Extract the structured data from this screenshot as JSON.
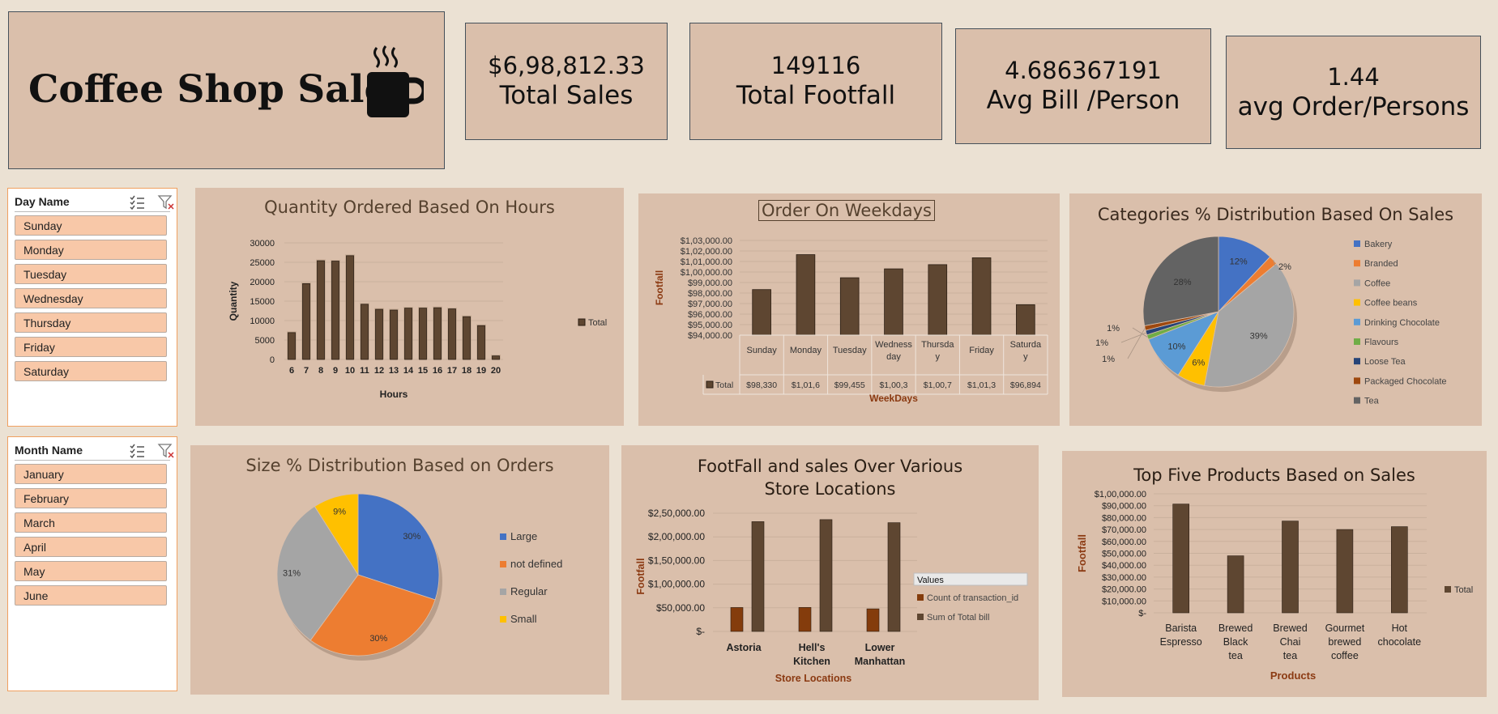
{
  "header": {
    "title": "Coffee Shop Sales",
    "icon": "coffee-mug-icon"
  },
  "kpis": [
    {
      "value": "$6,98,812.33",
      "label": "Total Sales"
    },
    {
      "value": "149116",
      "label": "Total Footfall"
    },
    {
      "value": "4.686367191",
      "label": "Avg Bill  /Person"
    },
    {
      "value": "1.44",
      "label": "avg Order/Persons"
    }
  ],
  "slicers": {
    "day": {
      "title": "Day Name",
      "items": [
        "Sunday",
        "Monday",
        "Tuesday",
        "Wednesday",
        "Thursday",
        "Friday",
        "Saturday"
      ]
    },
    "month": {
      "title": "Month Name",
      "items": [
        "January",
        "February",
        "March",
        "April",
        "May",
        "June"
      ]
    }
  },
  "colors": {
    "background": "#ebe1d3",
    "panel": "#dabfab",
    "bar": "#5e4631",
    "title_text": "#55412e",
    "axis_title": "#8b3a12",
    "slicer_item": "#f8c8a8"
  },
  "chart_data": [
    {
      "id": "hours",
      "type": "bar",
      "title": "Quantity Ordered Based On Hours",
      "xlabel": "Hours",
      "ylabel": "Quantity",
      "categories": [
        "6",
        "7",
        "8",
        "9",
        "10",
        "11",
        "12",
        "13",
        "14",
        "15",
        "16",
        "17",
        "18",
        "19",
        "20"
      ],
      "series": [
        {
          "name": "Total",
          "values": [
            6900,
            19500,
            25400,
            25300,
            26700,
            14200,
            12900,
            12700,
            13200,
            13200,
            13300,
            13000,
            11000,
            8700,
            900
          ]
        }
      ],
      "ylim": [
        0,
        30000
      ],
      "yticks": [
        "0",
        "5000",
        "10000",
        "15000",
        "20000",
        "25000",
        "30000"
      ],
      "legend": "right"
    },
    {
      "id": "weekdays",
      "type": "bar",
      "title": "Order On Weekdays",
      "xlabel": "WeekDays",
      "ylabel": "Footfall",
      "categories": [
        "Sunday",
        "Monday",
        "Tuesday",
        "Wedness day",
        "Thursda y",
        "Friday",
        "Saturda y"
      ],
      "series": [
        {
          "name": "Total",
          "values": [
            98330,
            101650,
            99455,
            100300,
            100700,
            101350,
            96894
          ]
        }
      ],
      "table_values": [
        "$98,330",
        "$1,01,6",
        "$99,455",
        "$1,00,3",
        "$1,00,7",
        "$1,01,3",
        "$96,894"
      ],
      "ylim": [
        94000,
        103000
      ],
      "yticks": [
        "$94,000.00",
        "$95,000.00",
        "$96,000.00",
        "$97,000.00",
        "$98,000.00",
        "$99,000.00",
        "$1,00,000.00",
        "$1,01,000.00",
        "$1,02,000.00",
        "$1,03,000.00"
      ]
    },
    {
      "id": "categories",
      "type": "pie",
      "title": "Categories  % Distribution Based On Sales",
      "slices": [
        {
          "name": "Bakery",
          "value": 12,
          "color": "#4472c4",
          "label": "12%"
        },
        {
          "name": "Branded",
          "value": 2,
          "color": "#ed7d31",
          "label": "2%"
        },
        {
          "name": "Coffee",
          "value": 39,
          "color": "#a5a5a5",
          "label": "39%"
        },
        {
          "name": "Coffee beans",
          "value": 6,
          "color": "#ffc000",
          "label": "6%"
        },
        {
          "name": "Drinking Chocolate",
          "value": 10,
          "color": "#5b9bd5",
          "label": "10%"
        },
        {
          "name": "Flavours",
          "value": 1,
          "color": "#70ad47",
          "label": "1%"
        },
        {
          "name": "Loose Tea",
          "value": 1,
          "color": "#264478",
          "label": "1%"
        },
        {
          "name": "Packaged Chocolate",
          "value": 1,
          "color": "#9e480e",
          "label": "1%"
        },
        {
          "name": "Tea",
          "value": 28,
          "color": "#636363",
          "label": "28%"
        }
      ],
      "legend": "right"
    },
    {
      "id": "size",
      "type": "pie",
      "title": "Size % Distribution Based on Orders",
      "slices": [
        {
          "name": "Large",
          "value": 30,
          "color": "#4472c4",
          "label": "30%"
        },
        {
          "name": "not defined",
          "value": 30,
          "color": "#ed7d31",
          "label": "30%"
        },
        {
          "name": "Regular",
          "value": 31,
          "color": "#a5a5a5",
          "label": "31%"
        },
        {
          "name": "Small",
          "value": 9,
          "color": "#ffc000",
          "label": "9%"
        }
      ],
      "legend": "right"
    },
    {
      "id": "stores",
      "type": "bar",
      "title": "FootFall and sales Over Various Store Locations",
      "xlabel": "Store Locations",
      "ylabel": "Footfall",
      "categories": [
        "Astoria",
        "Hell's Kitchen",
        "Lower Manhattan"
      ],
      "legend_title": "Values",
      "series": [
        {
          "name": "Count of transaction_id",
          "color": "#843c0c",
          "values": [
            50599,
            50735,
            47782
          ]
        },
        {
          "name": "Sum of Total bill",
          "color": "#5e4631",
          "values": [
            232244,
            236511,
            230057
          ]
        }
      ],
      "ylim": [
        0,
        250000
      ],
      "yticks": [
        "$-",
        "$50,000.00",
        "$1,00,000.00",
        "$1,50,000.00",
        "$2,00,000.00",
        "$2,50,000.00"
      ]
    },
    {
      "id": "products",
      "type": "bar",
      "title": "Top Five  Products Based on Sales",
      "xlabel": "Products",
      "ylabel": "Footfall",
      "categories": [
        "Barista Espresso",
        "Brewed Black tea",
        "Brewed Chai tea",
        "Gourmet brewed coffee",
        "Hot chocolate"
      ],
      "series": [
        {
          "name": "Total",
          "values": [
            91400,
            47900,
            77100,
            70000,
            72400
          ]
        }
      ],
      "ylim": [
        0,
        100000
      ],
      "yticks": [
        "$-",
        "$10,000.00",
        "$20,000.00",
        "$30,000.00",
        "$40,000.00",
        "$50,000.00",
        "$60,000.00",
        "$70,000.00",
        "$80,000.00",
        "$90,000.00",
        "$1,00,000.00"
      ],
      "legend": "right"
    }
  ]
}
